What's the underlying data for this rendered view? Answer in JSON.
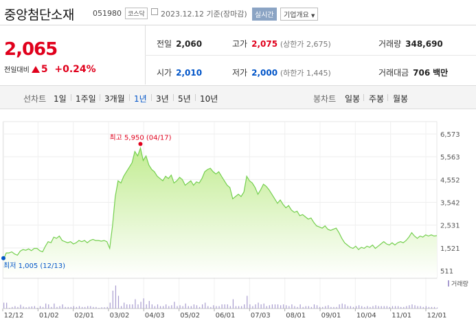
{
  "header": {
    "name": "중앙첨단소재",
    "code": "051980",
    "market": "코스닥",
    "date": "2023.12.12",
    "basis": "기준(장마감)",
    "realtime": "실시간",
    "company_info": "기업개요"
  },
  "quote": {
    "price": "2,065",
    "change_label": "전일대비",
    "change": "5",
    "change_pct": "+0.24%",
    "prev_label": "전일",
    "prev": "2,060",
    "high_label": "고가",
    "high": "2,075",
    "upper_limit": "(상한가 2,675)",
    "volume_label": "거래량",
    "volume": "348,690",
    "open_label": "시가",
    "open": "2,010",
    "low_label": "저가",
    "low": "2,000",
    "lower_limit": "(하한가 1,445)",
    "amount_label": "거래대금",
    "amount": "706",
    "amount_unit": "백만"
  },
  "tabs": {
    "line_header": "선차트",
    "line": [
      "1일",
      "1주일",
      "3개월",
      "1년",
      "3년",
      "5년",
      "10년"
    ],
    "selected": "1년",
    "candle_header": "봉차트",
    "candle": [
      "일봉",
      "주봉",
      "월봉"
    ]
  },
  "colors": {
    "up": "#e0001c",
    "down": "#0054c8",
    "line": "#74cf4e",
    "fill_top": "#c9ee9f"
  },
  "chart_data": {
    "type": "area",
    "y_ticks": [
      "6,573",
      "5,563",
      "4,552",
      "3,542",
      "2,531",
      "1,521",
      "511"
    ],
    "ylim": [
      511,
      6573
    ],
    "x_ticks": [
      "12/12",
      "01/02",
      "02/01",
      "03/02",
      "04/03",
      "05/02",
      "06/01",
      "07/03",
      "08/01",
      "09/01",
      "10/04",
      "11/01",
      "12/01"
    ],
    "high_annotation": "최고 5,950 (04/17)",
    "low_annotation": "최저 1,005 (12/13)",
    "volume_label": "거래량",
    "series": [
      {
        "values": [
          1005,
          1300,
          1300,
          1350,
          1250,
          1200,
          1380,
          1450,
          1420,
          1480,
          1400,
          1500,
          1500,
          1400,
          1350,
          1600,
          1800,
          1750,
          2000,
          1950,
          2050,
          1850,
          1800,
          1750,
          1800,
          1700,
          1750,
          1850,
          1800,
          1850,
          1750,
          1850,
          1900,
          1850,
          1850,
          1820,
          1850,
          1800,
          1500,
          2500,
          3800,
          4500,
          4400,
          4700,
          4900,
          5100,
          5300,
          5800,
          5600,
          5950,
          5400,
          5600,
          5200,
          5000,
          4900,
          4700,
          4600,
          4500,
          4700,
          4600,
          4750,
          4400,
          4500,
          4650,
          4550,
          4300,
          4400,
          4500,
          4300,
          4450,
          4400,
          4600,
          4900,
          5000,
          5050,
          4900,
          4800,
          4900,
          4700,
          4500,
          4300,
          4200,
          3700,
          3800,
          3900,
          3800,
          4000,
          4700,
          4500,
          4400,
          4200,
          3900,
          4100,
          4350,
          4250,
          4100,
          3900,
          3700,
          3500,
          3650,
          3450,
          3300,
          3400,
          3200,
          3100,
          3150,
          2950,
          3000,
          2900,
          2800,
          2850,
          2650,
          2500,
          2450,
          2400,
          2500,
          2350,
          2300,
          2350,
          2400,
          2200,
          1950,
          1750,
          1650,
          1550,
          1500,
          1600,
          1450,
          1550,
          1500,
          1600,
          1550,
          1650,
          1500,
          1600,
          1700,
          1800,
          1700,
          1650,
          1750,
          1650,
          1750,
          1800,
          1750,
          1850,
          2000,
          2200,
          2050,
          1950,
          2050,
          2000,
          2100,
          2050,
          2100,
          2050,
          2065
        ]
      }
    ]
  }
}
